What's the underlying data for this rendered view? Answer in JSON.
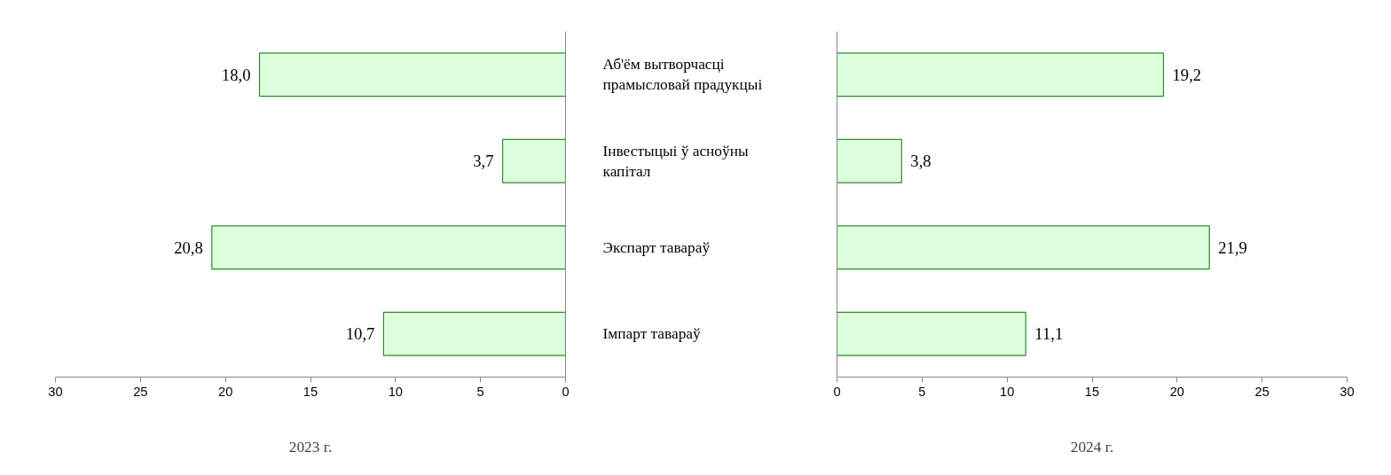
{
  "chart_data": [
    {
      "type": "bar",
      "orientation": "horizontal",
      "categories": [
        "Аб'ём вытворчасці прамысловай прадукцыі",
        "Інвестыцыі ў асноўны капітал",
        "Экспарт тавараў",
        "Імпарт тавараў"
      ],
      "values": [
        18.0,
        3.7,
        20.8,
        10.7
      ],
      "value_labels": [
        "18,0",
        "3,7",
        "20,8",
        "10,7"
      ],
      "color": "#ddffdd",
      "xlim": [
        30,
        0
      ],
      "xticks": [
        30,
        25,
        20,
        15,
        10,
        5,
        0
      ],
      "xlabel": "2023 г.",
      "grid": false
    },
    {
      "type": "bar",
      "orientation": "horizontal",
      "categories": [
        null,
        null,
        null,
        null
      ],
      "values": [
        19.2,
        3.8,
        21.9,
        11.1
      ],
      "value_labels": [
        "19,2",
        "3,8",
        "21,9",
        "11,1"
      ],
      "color": "#ddffdd",
      "xlim": [
        0,
        30
      ],
      "xticks": [
        0,
        5,
        10,
        15,
        20,
        25,
        30
      ],
      "xlabel": "2024 г.",
      "tick_labels": "x",
      "grid": false
    }
  ]
}
